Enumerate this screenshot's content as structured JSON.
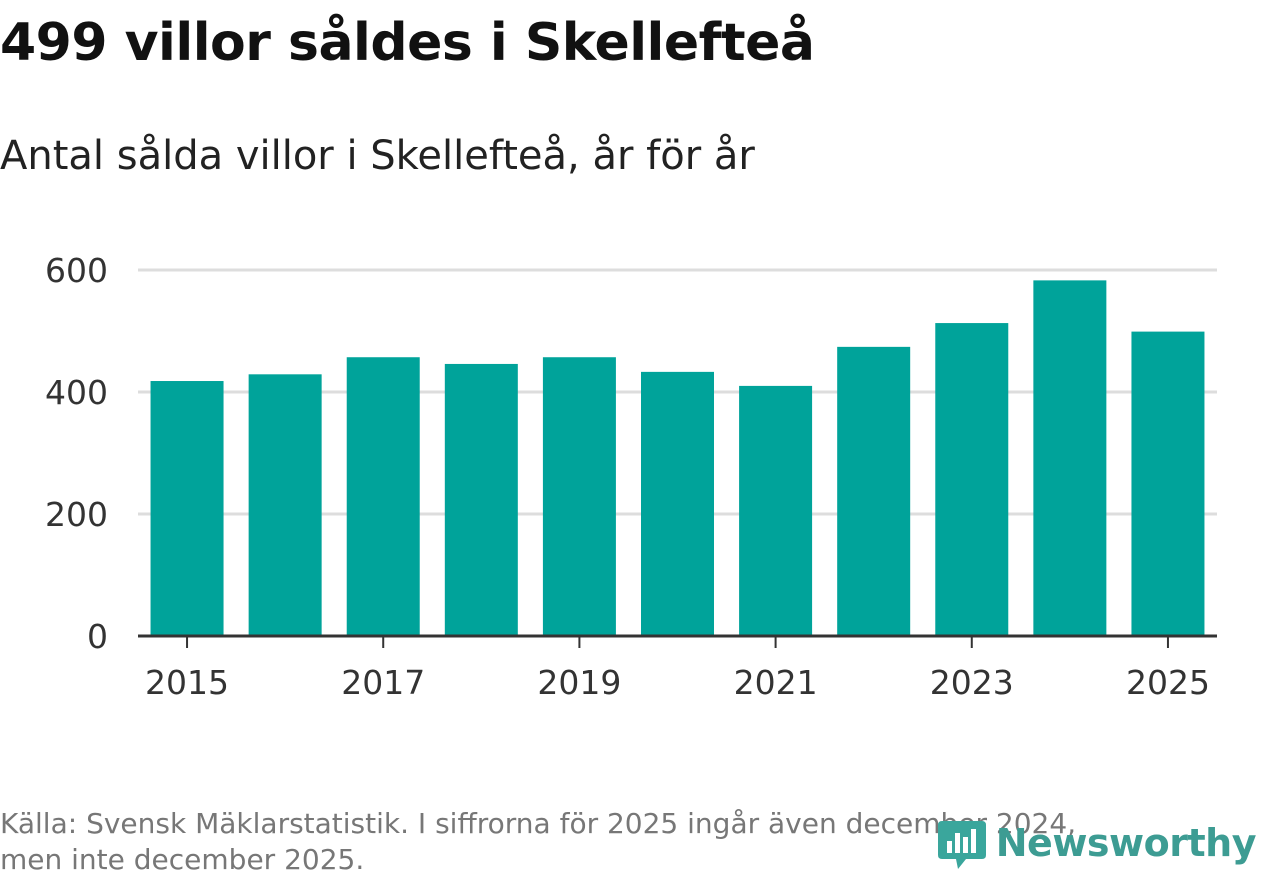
{
  "header": {
    "title": "499 villor såldes i Skellefteå",
    "subtitle": "Antal sålda villor i Skellefteå, år för år"
  },
  "footer": {
    "source_line1": "Källa: Svensk Mäklarstatistik. I siffrorna för 2025 ingår även december 2024,",
    "source_line2": "men inte december 2025."
  },
  "brand": {
    "name": "Newsworthy",
    "icon": "newsworthy-logo-icon",
    "color": "#3d9c93"
  },
  "colors": {
    "bar": "#00a39a",
    "grid": "#dddddd",
    "axis": "#333333"
  },
  "chart_data": {
    "type": "bar",
    "title": "499 villor såldes i Skellefteå",
    "subtitle": "Antal sålda villor i Skellefteå, år för år",
    "xlabel": "",
    "ylabel": "",
    "categories": [
      "2015",
      "2016",
      "2017",
      "2018",
      "2019",
      "2020",
      "2021",
      "2022",
      "2023",
      "2024",
      "2025"
    ],
    "values": [
      418,
      429,
      457,
      446,
      457,
      433,
      410,
      474,
      513,
      583,
      499
    ],
    "ylim": [
      0,
      600
    ],
    "yticks": [
      0,
      200,
      400,
      600
    ],
    "xtick_labels": [
      "2015",
      "2017",
      "2019",
      "2021",
      "2023",
      "2025"
    ],
    "grid": true,
    "legend": "none"
  }
}
